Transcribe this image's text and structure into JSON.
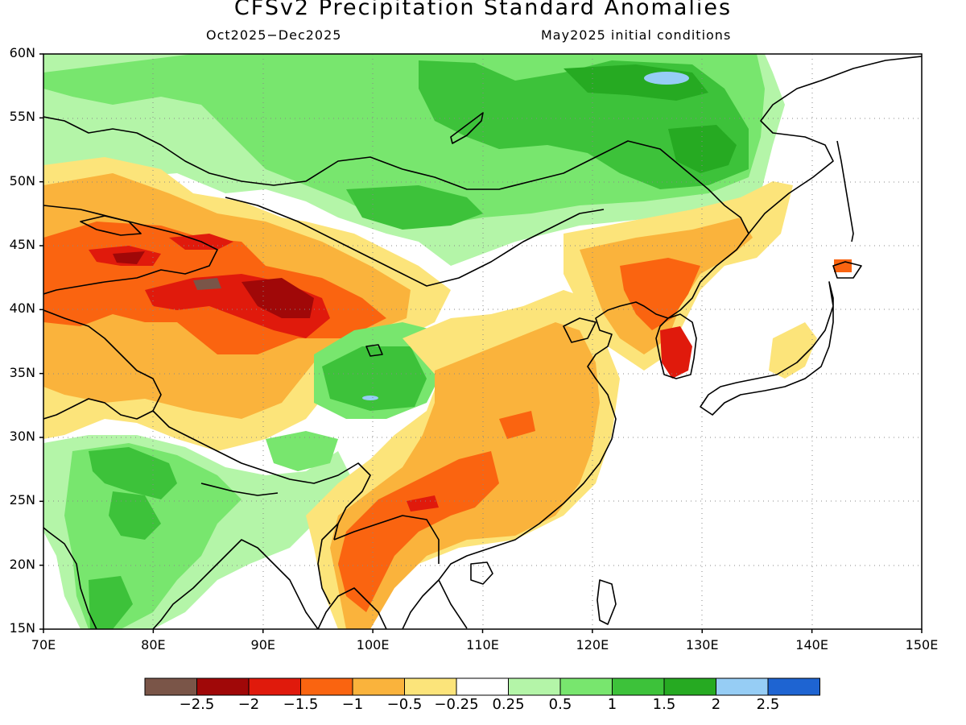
{
  "title": "CFSv2 Precipitation Standard Anomalies",
  "period": "Oct2025−Dec2025",
  "initial_conditions": "May2025 initial conditions",
  "lat_labels": [
    "60N",
    "55N",
    "50N",
    "45N",
    "40N",
    "35N",
    "30N",
    "25N",
    "20N",
    "15N"
  ],
  "lon_labels": [
    "70E",
    "80E",
    "90E",
    "100E",
    "110E",
    "120E",
    "130E",
    "140E",
    "150E"
  ],
  "colorbar": {
    "colors": [
      "#7a5548",
      "#a00808",
      "#e01a0c",
      "#fa6410",
      "#fab33c",
      "#fce47a",
      "#ffffff",
      "#b4f5a8",
      "#78e66e",
      "#3dc23a",
      "#26aa22",
      "#96cdf5",
      "#1e64d2"
    ],
    "labels": [
      "−2.5",
      "−2",
      "−1.5",
      "−1",
      "−0.5",
      "−0.25",
      "0.25",
      "0.5",
      "1",
      "1.5",
      "2",
      "2.5"
    ]
  },
  "map": {
    "lon_range": [
      70,
      150
    ],
    "lat_range": [
      15,
      60
    ],
    "grid": "dotted",
    "colors": {
      "brown": "#7a5548",
      "darkred": "#a00808",
      "red": "#e01a0c",
      "orange": "#fa6410",
      "lightorange": "#fab33c",
      "yellow": "#fce47a",
      "lightgreen": "#b4f5a8",
      "green": "#78e66e",
      "mediumgreen": "#3dc23a",
      "darkgreen": "#26aa22",
      "lightblue": "#96cdf5"
    }
  }
}
